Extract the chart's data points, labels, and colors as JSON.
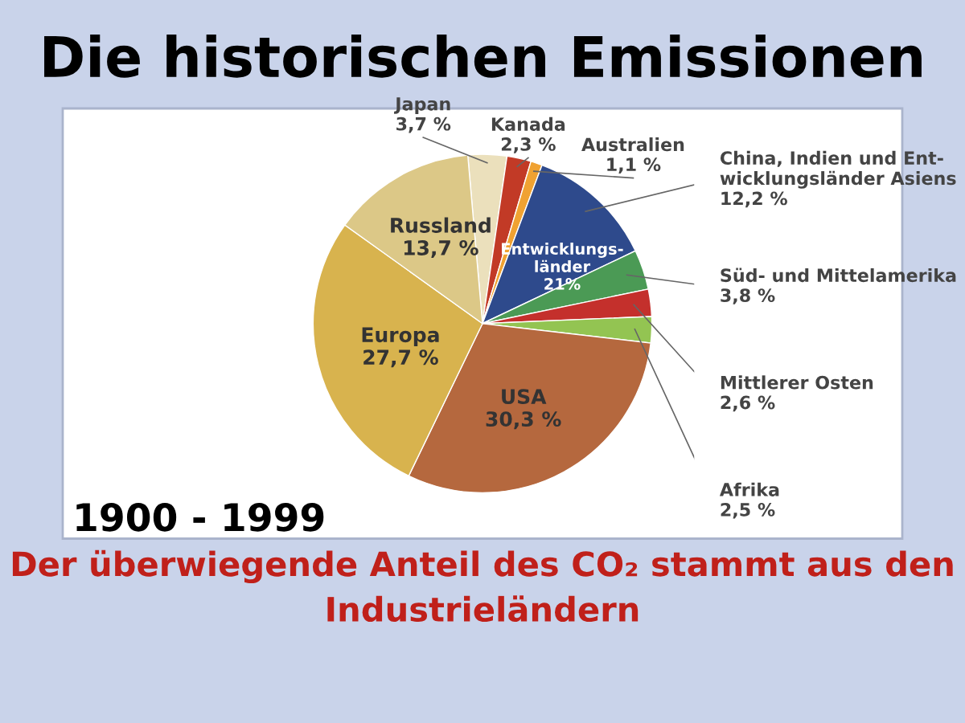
{
  "chart_data": {
    "type": "pie",
    "title": "Die historischen Emissionen",
    "subtitle": "Der überwiegende Anteil des CO₂ stammt aus den Industrieländern",
    "categories": [
      "Japan",
      "Kanada",
      "Australien",
      "China, Indien und Ent-\nwicklungsländer Asiens",
      "Süd- und Mittelamerika",
      "Mittlerer Osten",
      "Afrika",
      "USA",
      "Europa",
      "Russland"
    ],
    "values": [
      3.7,
      2.3,
      1.1,
      12.2,
      3.8,
      2.6,
      2.5,
      30.3,
      27.7,
      13.7
    ],
    "value_labels": [
      "3,7 %",
      "2,3 %",
      "1,1 %",
      "12,2 %",
      "3,8 %",
      "2,6 %",
      "2,5 %",
      "30,3 %",
      "27,7 %",
      "13,7 %"
    ],
    "colors": [
      "#ebe0bc",
      "#c23a26",
      "#f0a232",
      "#2e4a8c",
      "#4b9a55",
      "#c4302c",
      "#93c452",
      "#b5683e",
      "#d8b34e",
      "#dcc887"
    ],
    "annotations": [
      "Entwicklungs-\nländer\n21%",
      "1900 - 1999"
    ]
  }
}
